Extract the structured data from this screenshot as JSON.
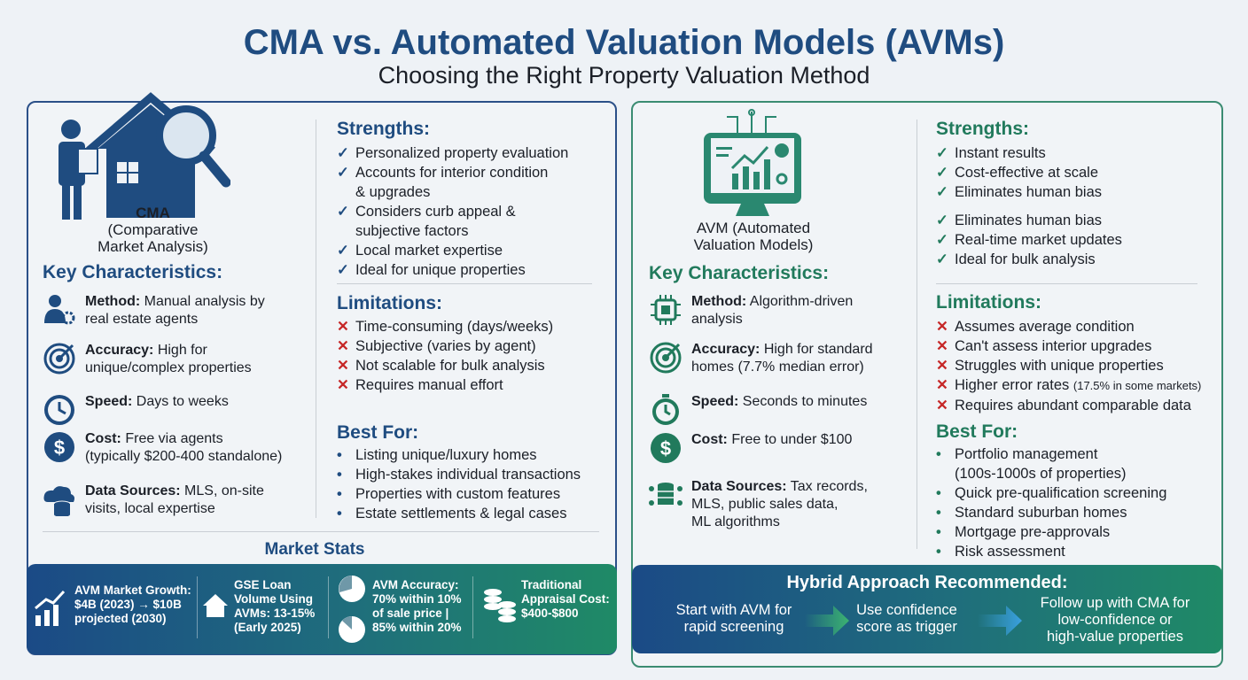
{
  "title": "CMA vs. Automated Valuation Models (AVMs)",
  "subtitle": "Choosing the Right Property Valuation Method",
  "colors": {
    "cma_blue": "#1f4c80",
    "avm_teal": "#217a5c",
    "limit_red": "#c62828"
  },
  "cma": {
    "caption_line1": "CMA",
    "caption_line2": "(Comparative",
    "caption_line3": "Market Analysis)",
    "key_heading": "Key Characteristics:",
    "key": [
      {
        "icon": "agent-gear-icon",
        "label": "Method:",
        "text1": " Manual analysis by",
        "text2": "real estate agents"
      },
      {
        "icon": "target-icon",
        "label": "Accuracy:",
        "text1": " High for",
        "text2": "unique/complex properties"
      },
      {
        "icon": "clock-icon",
        "label": "Speed:",
        "text1": " Days to weeks",
        "text2": ""
      },
      {
        "icon": "dollar-icon",
        "label": "Cost:",
        "text1": " Free via agents",
        "text2": "(typically $200-400 standalone)"
      },
      {
        "icon": "cloud-database-icon",
        "label": "Data Sources:",
        "text1": " MLS, on-site",
        "text2": "visits, local expertise"
      }
    ],
    "strengths_heading": "Strengths:",
    "strengths": [
      "Personalized property evaluation",
      "Accounts for interior condition",
      "& upgrades",
      "Considers curb appeal &",
      "subjective factors",
      "Local market expertise",
      "Ideal for unique properties"
    ],
    "limitations_heading": "Limitations:",
    "limitations": [
      "Time-consuming (days/weeks)",
      "Subjective (varies by agent)",
      "Not scalable for bulk analysis",
      "Requires manual effort"
    ],
    "bestfor_heading": "Best For:",
    "bestfor": [
      "Listing unique/luxury homes",
      "High-stakes individual transactions",
      "Properties with custom features",
      "Estate settlements & legal cases"
    ]
  },
  "market_stats": {
    "heading": "Market Stats",
    "items": [
      {
        "icon": "growth-chart-icon",
        "lines": [
          "AVM Market Growth:",
          "$4B (2023) → $10B",
          "projected (2030)"
        ]
      },
      {
        "icon": "house-icon",
        "lines": [
          "GSE Loan",
          "Volume Using",
          "AVMs: 13-15%",
          "(Early 2025)"
        ]
      },
      {
        "icon": "pie-chart-icon",
        "lines": [
          "AVM Accuracy:",
          "70% within 10%",
          "of sale price |",
          "85% within 20%"
        ]
      },
      {
        "icon": "coin-stack-icon",
        "lines": [
          "Traditional",
          "Appraisal Cost:",
          "$400-$800"
        ]
      }
    ]
  },
  "avm": {
    "caption_line1": "AVM (Automated",
    "caption_line2": "Valuation Models)",
    "key_heading": "Key Characteristics:",
    "key": [
      {
        "icon": "chip-icon",
        "label": "Method:",
        "text1": " Algorithm-driven",
        "text2": "analysis",
        "text3": ""
      },
      {
        "icon": "target-icon",
        "label": "Accuracy:",
        "text1": " High for standard",
        "text2": "homes (7.7% median error)",
        "text3": ""
      },
      {
        "icon": "stopwatch-icon",
        "label": "Speed:",
        "text1": " Seconds to minutes",
        "text2": "",
        "text3": ""
      },
      {
        "icon": "dollar-icon",
        "label": "Cost:",
        "text1": " Free to under $100",
        "text2": "",
        "text3": ""
      },
      {
        "icon": "network-database-icon",
        "label": "Data Sources:",
        "text1": " Tax records,",
        "text2": "MLS, public sales data,",
        "text3": "ML algorithms"
      }
    ],
    "strengths_heading": "Strengths:",
    "strengths": [
      "Instant results",
      "Cost-effective at scale",
      "Eliminates human bias",
      "Eliminates human bias",
      "Real-time market updates",
      "Ideal for bulk analysis"
    ],
    "limitations_heading": "Limitations:",
    "limitations": [
      "Assumes average condition",
      "Can't assess interior upgrades",
      "Struggles with unique properties",
      "Higher error rates",
      "Requires abundant comparable data"
    ],
    "limitation_note": "(17.5% in some markets)",
    "bestfor_heading": "Best For:",
    "bestfor": [
      "Portfolio management",
      "(100s-1000s of properties)",
      "Quick pre-qualification screening",
      "Standard suburban homes",
      "Mortgage pre-approvals",
      "Risk assessment"
    ]
  },
  "hybrid": {
    "heading": "Hybrid Approach Recommended:",
    "steps": [
      {
        "line1": "Start with AVM for",
        "line2": "rapid screening",
        "line3": ""
      },
      {
        "line1": "Use confidence",
        "line2": "score as trigger",
        "line3": ""
      },
      {
        "line1": "Follow up with CMA for",
        "line2": "low-confidence or",
        "line3": "high-value properties"
      }
    ]
  }
}
